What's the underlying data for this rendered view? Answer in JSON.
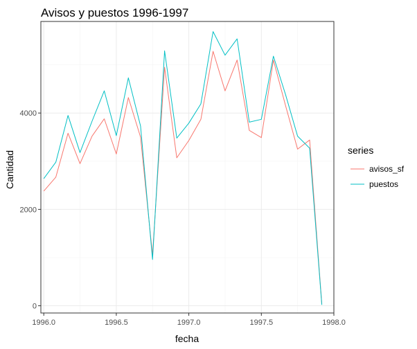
{
  "chart_data": {
    "type": "line",
    "title": "Avisos y puestos 1996-1997",
    "xlabel": "fecha",
    "ylabel": "Cantidad",
    "xlim": [
      1995.98,
      1998.0
    ],
    "ylim": [
      -150,
      5900
    ],
    "x_ticks": [
      1996.0,
      1996.5,
      1997.0,
      1997.5,
      1998.0
    ],
    "x_tick_labels": [
      "1996.0",
      "1996.5",
      "1997.0",
      "1997.5",
      "1998.0"
    ],
    "y_ticks": [
      0,
      2000,
      4000
    ],
    "y_tick_labels": [
      "0",
      "2000",
      "4000"
    ],
    "grid": true,
    "legend": {
      "title": "series",
      "placement": "right"
    },
    "x": [
      1996.0,
      1996.083,
      1996.167,
      1996.25,
      1996.333,
      1996.417,
      1996.5,
      1996.583,
      1996.667,
      1996.75,
      1996.833,
      1996.917,
      1997.0,
      1997.083,
      1997.167,
      1997.25,
      1997.333,
      1997.417,
      1997.5,
      1997.583,
      1997.667,
      1997.75,
      1997.833,
      1997.917
    ],
    "series": [
      {
        "name": "avisos_sf",
        "color": "#F8766D",
        "values": [
          2380,
          2670,
          3580,
          2950,
          3520,
          3880,
          3150,
          4320,
          3500,
          1050,
          4950,
          3070,
          3430,
          3870,
          5280,
          4460,
          5100,
          3640,
          3490,
          5100,
          4150,
          3250,
          3440,
          30
        ]
      },
      {
        "name": "puestos",
        "color": "#00BFC4",
        "values": [
          2640,
          2980,
          3950,
          3180,
          3830,
          4460,
          3530,
          4730,
          3730,
          960,
          5290,
          3480,
          3790,
          4190,
          5690,
          5200,
          5540,
          3810,
          3870,
          5180,
          4380,
          3520,
          3270,
          20
        ]
      }
    ]
  }
}
